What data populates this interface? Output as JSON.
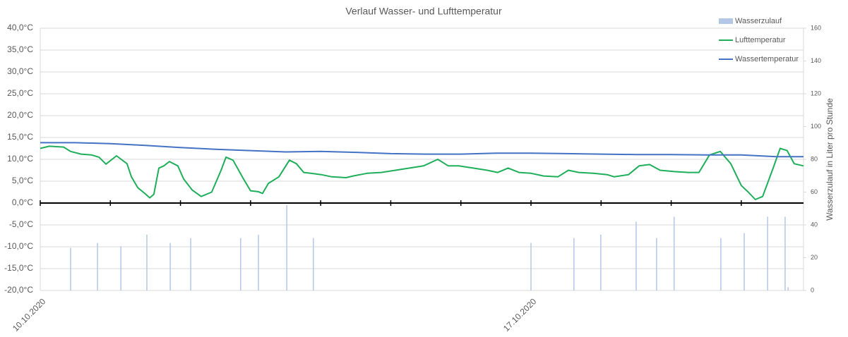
{
  "chart_data": {
    "type": "combo",
    "title": "Verlauf Wasser- und Lufttemperatur",
    "y2label": "Wasserzulauf in Liter pro Stunde",
    "xlim": [
      0,
      261.3
    ],
    "xticks": [
      {
        "value": 0,
        "label": "10.10.2020"
      },
      {
        "value": 168,
        "label": "17.10.2020"
      }
    ],
    "x_minor_ticks": [
      0,
      24,
      48,
      72,
      96,
      120,
      144,
      168,
      192,
      216,
      240
    ],
    "ylim": [
      -20,
      40
    ],
    "yticks": [
      {
        "value": 40,
        "label": "40,0°C"
      },
      {
        "value": 35,
        "label": "35,0°C"
      },
      {
        "value": 30,
        "label": "30,0°C"
      },
      {
        "value": 25,
        "label": "25,0°C"
      },
      {
        "value": 20,
        "label": "20,0°C"
      },
      {
        "value": 15,
        "label": "15,0°C"
      },
      {
        "value": 10,
        "label": "10,0°C"
      },
      {
        "value": 5,
        "label": "5,0°C"
      },
      {
        "value": 0,
        "label": "0,0°C"
      },
      {
        "value": -5,
        "label": "-5,0°C"
      },
      {
        "value": -10,
        "label": "-10,0°C"
      },
      {
        "value": -15,
        "label": "-15,0°C"
      },
      {
        "value": -20,
        "label": "-20,0°C"
      }
    ],
    "y2lim": [
      0,
      160
    ],
    "y2ticks": [
      0,
      20,
      40,
      60,
      80,
      100,
      120,
      140,
      160
    ],
    "grid": true,
    "legend": "top-right",
    "series": [
      {
        "name": "Wasserzulauf",
        "type": "bar",
        "axis": "y2",
        "color": "#b4c7e7",
        "x": [
          10.4,
          19.6,
          27.6,
          36.5,
          44.5,
          51.5,
          68.6,
          74.7,
          84.4,
          93.5,
          168,
          182.7,
          191.9,
          204,
          211,
          217,
          233,
          241,
          249,
          255,
          256
        ],
        "values": [
          26,
          29,
          27,
          34,
          29,
          32,
          32,
          34,
          52,
          32,
          29,
          32,
          34,
          42,
          32,
          45,
          32,
          35,
          45,
          45,
          2
        ]
      },
      {
        "name": "Lufttemperatur",
        "type": "line",
        "color": "#1faf5a",
        "x": [
          0,
          3.1,
          8.0,
          10.4,
          14.0,
          17.6,
          20.1,
          22.5,
          26.1,
          29.7,
          31.2,
          33.4,
          35.8,
          37.5,
          38.9,
          40.6,
          42.3,
          44.2,
          47.1,
          49.1,
          52.0,
          55.1,
          58.7,
          61.9,
          63.6,
          66.0,
          69.6,
          72.0,
          74.7,
          76.1,
          78.1,
          81.7,
          85.3,
          87.7,
          90.2,
          92.6,
          96.2,
          99.8,
          104.7,
          107.1,
          111.9,
          116.7,
          121.6,
          126.4,
          131.2,
          136.1,
          139.7,
          143.3,
          148.2,
          153.0,
          156.6,
          160.2,
          163.9,
          168.0,
          172.3,
          177.2,
          180.8,
          184.4,
          189.3,
          194.1,
          196.5,
          201.4,
          205.0,
          208.6,
          212.2,
          217.1,
          221.9,
          225.5,
          229.1,
          232.8,
          236.4,
          240.0,
          242.4,
          244.8,
          247.3,
          250.9,
          253.3,
          255.7,
          258.1,
          261.3
        ],
        "values": [
          12.5,
          13.0,
          12.8,
          11.8,
          11.2,
          11.0,
          10.5,
          8.9,
          10.8,
          9.0,
          6.0,
          3.5,
          2.2,
          1.2,
          2.0,
          8.0,
          8.5,
          9.5,
          8.5,
          5.5,
          3.0,
          1.5,
          2.5,
          7.5,
          10.5,
          9.8,
          5.5,
          2.8,
          2.6,
          2.2,
          4.5,
          6.0,
          9.8,
          9.0,
          7.0,
          6.8,
          6.5,
          6.0,
          5.8,
          6.2,
          6.8,
          7.0,
          7.5,
          8.0,
          8.5,
          10.0,
          8.5,
          8.5,
          8.0,
          7.5,
          7.0,
          8.0,
          7.0,
          6.8,
          6.2,
          6.0,
          7.5,
          7.0,
          6.8,
          6.5,
          6.0,
          6.5,
          8.5,
          8.8,
          7.5,
          7.2,
          7.0,
          7.0,
          11.0,
          11.8,
          9.0,
          4.0,
          2.5,
          0.8,
          1.5,
          8.0,
          12.5,
          12.0,
          9.0,
          8.5
        ]
      },
      {
        "name": "Wassertemperatur",
        "type": "line",
        "color": "#4472c4",
        "x": [
          0,
          12,
          24,
          36,
          48,
          60,
          72,
          84,
          96,
          108,
          120,
          132,
          144,
          156,
          168,
          180,
          192,
          204,
          216,
          228,
          240,
          252,
          261.3
        ],
        "values": [
          13.8,
          13.8,
          13.6,
          13.2,
          12.7,
          12.3,
          12.0,
          11.7,
          11.8,
          11.6,
          11.3,
          11.2,
          11.2,
          11.4,
          11.4,
          11.3,
          11.2,
          11.1,
          11.1,
          11.0,
          11.0,
          10.6,
          10.6
        ]
      }
    ]
  }
}
